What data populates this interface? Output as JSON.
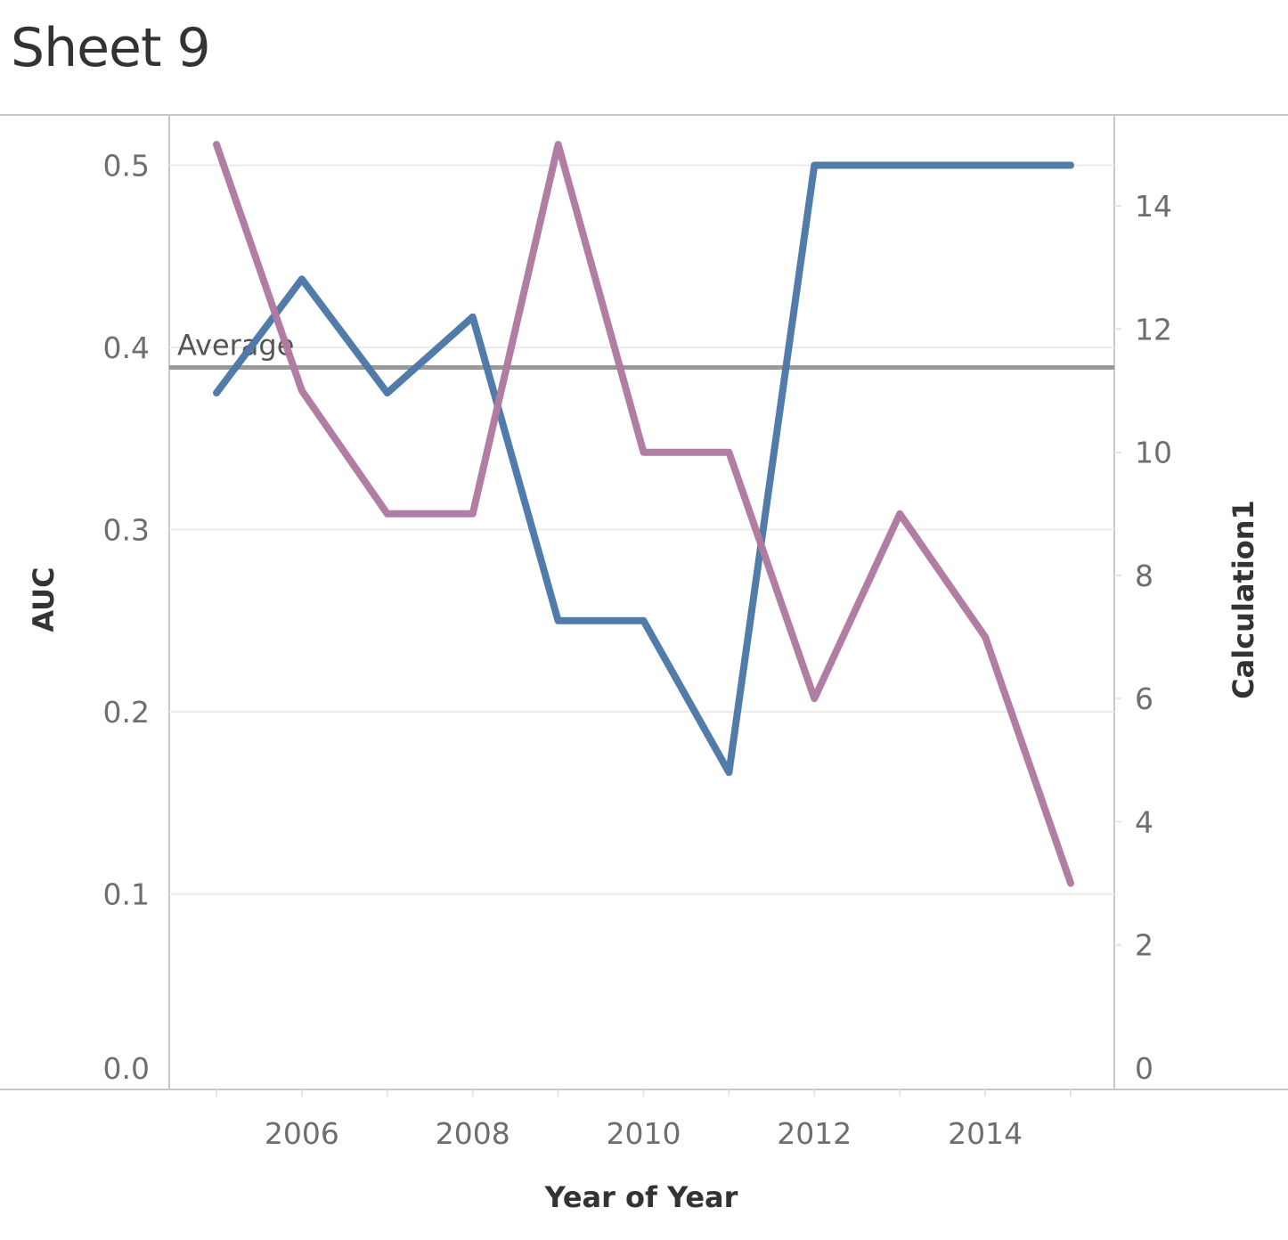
{
  "title": "Sheet 9",
  "chart_data": {
    "type": "line",
    "xlabel": "Year of Year",
    "ylabel_left": "AUC",
    "ylabel_right": "Calculation1",
    "x": [
      2005,
      2006,
      2007,
      2008,
      2009,
      2010,
      2011,
      2012,
      2013,
      2014,
      2015
    ],
    "x_ticks": [
      "2006",
      "2008",
      "2010",
      "2012",
      "2014"
    ],
    "y_left_ticks": [
      "0.0",
      "0.1",
      "0.2",
      "0.3",
      "0.4",
      "0.5"
    ],
    "y_right_ticks": [
      "0",
      "2",
      "4",
      "6",
      "8",
      "10",
      "12",
      "14"
    ],
    "ylim_left": [
      0,
      0.5
    ],
    "ylim_right": [
      0,
      15
    ],
    "grid": true,
    "series": [
      {
        "axis": "left",
        "color": "#4e79a7",
        "values": [
          0.375,
          0.4375,
          0.375,
          0.4167,
          0.25,
          0.25,
          0.1667,
          0.5,
          0.5,
          0.5,
          0.5
        ]
      },
      {
        "axis": "right",
        "color": "#b07aa1",
        "values": [
          15,
          11,
          9,
          9,
          15,
          10,
          10,
          6,
          9,
          7,
          3
        ]
      }
    ],
    "reference_line": {
      "label": "Average",
      "value": 0.389,
      "axis": "left",
      "color": "#999999"
    }
  }
}
